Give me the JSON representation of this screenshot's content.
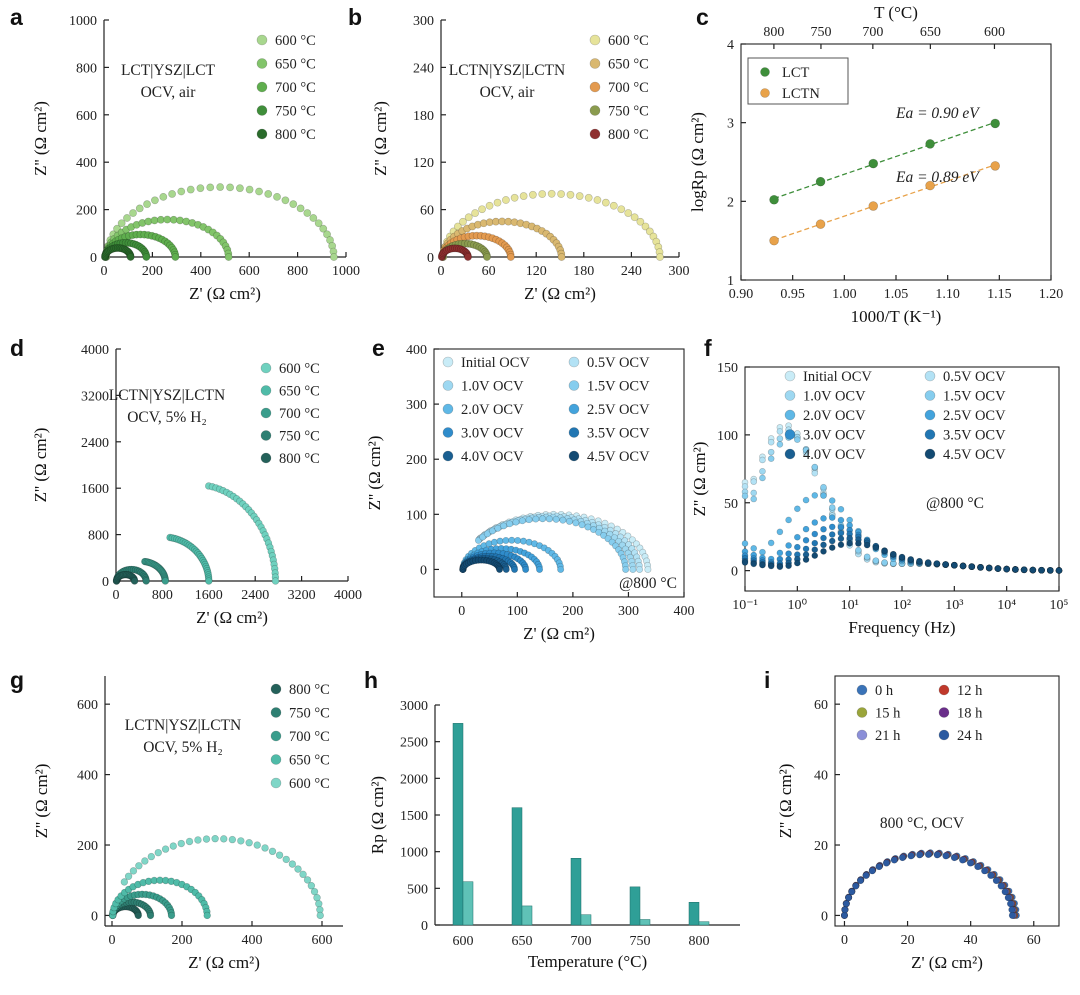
{
  "chart_data": [
    {
      "id": "a",
      "type": "scatter",
      "panel_label": "a",
      "annotation": [
        "LCT|YSZ|LCT",
        "OCV, air"
      ],
      "xlabel": "Z' (Ω cm²)",
      "ylabel": "Z'' (Ω cm²)",
      "xlim": [
        0,
        1000
      ],
      "ylim": [
        0,
        1000
      ],
      "xticks": [
        0,
        200,
        400,
        600,
        800,
        1000
      ],
      "yticks": [
        0,
        200,
        400,
        600,
        800,
        1000
      ],
      "legend_position": "top-right",
      "series": [
        {
          "name": "600 °C",
          "color": "#a8d78e",
          "left": 10,
          "right": 950,
          "peak": 295,
          "points": 36
        },
        {
          "name": "650 °C",
          "color": "#82c46a",
          "left": 8,
          "right": 515,
          "peak": 158,
          "points": 30
        },
        {
          "name": "700 °C",
          "color": "#5fae4e",
          "left": 6,
          "right": 295,
          "peak": 95,
          "points": 28
        },
        {
          "name": "750 °C",
          "color": "#3f8e3a",
          "left": 5,
          "right": 175,
          "peak": 60,
          "points": 24
        },
        {
          "name": "800 °C",
          "color": "#2a6b2b",
          "left": 4,
          "right": 110,
          "peak": 38,
          "points": 22
        }
      ]
    },
    {
      "id": "b",
      "type": "scatter",
      "panel_label": "b",
      "annotation": [
        "LCTN|YSZ|LCTN",
        "OCV, air"
      ],
      "xlabel": "Z' (Ω cm²)",
      "ylabel": "Z'' (Ω cm²)",
      "xlim": [
        0,
        300
      ],
      "ylim": [
        0,
        300
      ],
      "xticks": [
        0,
        60,
        120,
        180,
        240,
        300
      ],
      "yticks": [
        0,
        60,
        120,
        180,
        240,
        300
      ],
      "legend_position": "top-right",
      "series": [
        {
          "name": "600 °C",
          "color": "#e6e39a",
          "left": 3,
          "right": 276,
          "peak": 80,
          "points": 36
        },
        {
          "name": "650 °C",
          "color": "#d9b870",
          "left": 2,
          "right": 152,
          "peak": 45,
          "points": 30
        },
        {
          "name": "700 °C",
          "color": "#e39a4f",
          "left": 2,
          "right": 88,
          "peak": 27,
          "points": 26
        },
        {
          "name": "750 °C",
          "color": "#8a9b4e",
          "left": 2,
          "right": 58,
          "peak": 17,
          "points": 22
        },
        {
          "name": "800 °C",
          "color": "#8e2f2f",
          "left": 1,
          "right": 34,
          "peak": 11,
          "points": 20
        }
      ]
    },
    {
      "id": "c",
      "type": "scatter",
      "panel_label": "c",
      "xlabel": "1000/T (K⁻¹)",
      "ylabel": "logRp (Ω cm²)",
      "top_xlabel": "T (°C)",
      "xlim": [
        0.9,
        1.2
      ],
      "ylim": [
        1,
        4
      ],
      "xticks": [
        0.9,
        0.95,
        1.0,
        1.05,
        1.1,
        1.15,
        1.2
      ],
      "xtick_labels": [
        "0.90",
        "0.95",
        "1.00",
        "1.05",
        "1.10",
        "1.15",
        "1.20"
      ],
      "yticks": [
        1,
        2,
        3,
        4
      ],
      "top_ticks": [
        800,
        750,
        700,
        650,
        600
      ],
      "legend_position": "top-left",
      "series": [
        {
          "name": "LCT",
          "color": "#3e8e3a",
          "x": [
            0.932,
            0.977,
            1.028,
            1.083,
            1.146
          ],
          "y": [
            2.02,
            2.25,
            2.48,
            2.73,
            2.99
          ],
          "ea": "Ea = 0.90 eV"
        },
        {
          "name": "LCTN",
          "color": "#e8a24a",
          "x": [
            0.932,
            0.977,
            1.028,
            1.083,
            1.146
          ],
          "y": [
            1.5,
            1.71,
            1.94,
            2.2,
            2.45
          ],
          "ea": "Ea = 0.89 eV"
        }
      ]
    },
    {
      "id": "d",
      "type": "scatter",
      "panel_label": "d",
      "annotation": [
        "LCTN|YSZ|LCTN",
        "OCV, 5% H₂"
      ],
      "xlabel": "Z' (Ω cm²)",
      "ylabel": "Z'' (Ω cm²)",
      "xlim": [
        0,
        4000
      ],
      "ylim": [
        0,
        4000
      ],
      "xticks": [
        0,
        800,
        1600,
        2400,
        3200,
        4000
      ],
      "yticks": [
        0,
        800,
        1600,
        2400,
        3200,
        4000
      ],
      "legend_position": "top-right",
      "series": [
        {
          "name": "600 °C",
          "color": "#6fd1bf",
          "left": 20,
          "right": 2750,
          "peak": 1660,
          "points": 30,
          "partial": 0.55
        },
        {
          "name": "650 °C",
          "color": "#4fbba8",
          "left": 15,
          "right": 1600,
          "peak": 760,
          "points": 28,
          "partial": 0.55
        },
        {
          "name": "700 °C",
          "color": "#3a9d8c",
          "left": 12,
          "right": 850,
          "peak": 340,
          "points": 26,
          "partial": 0.55
        },
        {
          "name": "750 °C",
          "color": "#2e7f72",
          "left": 10,
          "right": 520,
          "peak": 200,
          "points": 22
        },
        {
          "name": "800 °C",
          "color": "#24615a",
          "left": 8,
          "right": 320,
          "peak": 110,
          "points": 20
        }
      ]
    },
    {
      "id": "e",
      "type": "scatter",
      "panel_label": "e",
      "annotation": [
        "@800 °C"
      ],
      "xlabel": "Z' (Ω cm²)",
      "ylabel": "Z'' (Ω cm²)",
      "xlim": [
        -50,
        400
      ],
      "ylim": [
        -50,
        400
      ],
      "xticks": [
        0,
        100,
        200,
        300,
        400
      ],
      "yticks": [
        0,
        100,
        200,
        300,
        400
      ],
      "legend_position": "top",
      "series": [
        {
          "name": "Initial OCV",
          "color": "#c9ecf7",
          "left": 2,
          "right": 335,
          "peak": 100,
          "points": 30,
          "partial": 0.2
        },
        {
          "name": "0.5V OCV",
          "color": "#b3e2f5",
          "left": 2,
          "right": 320,
          "peak": 97,
          "points": 30,
          "partial": 0.2
        },
        {
          "name": "1.0V OCV",
          "color": "#9ed8f1",
          "left": 2,
          "right": 308,
          "peak": 95,
          "points": 30,
          "partial": 0.2
        },
        {
          "name": "1.5V OCV",
          "color": "#86cdee",
          "left": 2,
          "right": 295,
          "peak": 92,
          "points": 30,
          "partial": 0.2
        },
        {
          "name": "2.0V OCV",
          "color": "#5fb8e6",
          "left": 2,
          "right": 178,
          "peak": 53,
          "points": 26
        },
        {
          "name": "2.5V OCV",
          "color": "#43a3dc",
          "left": 2,
          "right": 140,
          "peak": 38,
          "points": 24
        },
        {
          "name": "3.0V OCV",
          "color": "#2f8ccb",
          "left": 2,
          "right": 115,
          "peak": 30,
          "points": 22
        },
        {
          "name": "3.5V OCV",
          "color": "#2176b2",
          "left": 2,
          "right": 95,
          "peak": 24,
          "points": 22
        },
        {
          "name": "4.0V OCV",
          "color": "#1a5f91",
          "left": 2,
          "right": 80,
          "peak": 20,
          "points": 20
        },
        {
          "name": "4.5V OCV",
          "color": "#134a72",
          "left": 2,
          "right": 68,
          "peak": 17,
          "points": 20
        }
      ]
    },
    {
      "id": "f",
      "type": "scatter",
      "panel_label": "f",
      "annotation": [
        "@800 °C"
      ],
      "xlabel": "Frequency (Hz)",
      "ylabel": "Z'' (Ω cm²)",
      "xscale": "log",
      "xlim": [
        0.1,
        100000
      ],
      "ylim": [
        -15,
        150
      ],
      "xticks": [
        0.1,
        1,
        10,
        100,
        1000,
        10000,
        100000
      ],
      "xtick_labels": [
        "10⁻¹",
        "10⁰",
        "10¹",
        "10²",
        "10³",
        "10⁴",
        "10⁵"
      ],
      "yticks": [
        0,
        50,
        100,
        150
      ],
      "legend_position": "top",
      "series": [
        {
          "name": "Initial OCV",
          "color": "#c9ecf7",
          "peak_f": 0.6,
          "peak": 107,
          "low": 65
        },
        {
          "name": "0.5V OCV",
          "color": "#b3e2f5",
          "peak_f": 0.6,
          "peak": 104,
          "low": 62
        },
        {
          "name": "1.0V OCV",
          "color": "#9ed8f1",
          "peak_f": 0.7,
          "peak": 101,
          "low": 58
        },
        {
          "name": "1.5V OCV",
          "color": "#86cdee",
          "peak_f": 0.75,
          "peak": 98,
          "low": 55
        },
        {
          "name": "2.0V OCV",
          "color": "#5fb8e6",
          "peak_f": 2.5,
          "peak": 55,
          "low": 20
        },
        {
          "name": "2.5V OCV",
          "color": "#43a3dc",
          "peak_f": 4.0,
          "peak": 38,
          "low": 14
        },
        {
          "name": "3.0V OCV",
          "color": "#2f8ccb",
          "peak_f": 5.0,
          "peak": 31,
          "low": 11
        },
        {
          "name": "3.5V OCV",
          "color": "#2176b2",
          "peak_f": 6.5,
          "peak": 26,
          "low": 9
        },
        {
          "name": "4.0V OCV",
          "color": "#1a5f91",
          "peak_f": 8.0,
          "peak": 22,
          "low": 7
        },
        {
          "name": "4.5V OCV",
          "color": "#134a72",
          "peak_f": 10.0,
          "peak": 18,
          "low": 6
        }
      ]
    },
    {
      "id": "g",
      "type": "scatter",
      "panel_label": "g",
      "annotation": [
        "LCTN|YSZ|LCTN",
        "OCV, 5% H₂"
      ],
      "xlabel": "Z' (Ω cm²)",
      "ylabel": "Z'' (Ω cm²)",
      "xlim": [
        -20,
        660
      ],
      "ylim": [
        -30,
        680
      ],
      "xticks": [
        0,
        200,
        400,
        600
      ],
      "yticks": [
        0,
        200,
        400,
        600
      ],
      "legend_position": "top-right",
      "series": [
        {
          "name": "800 °C",
          "color": "#24615a",
          "left": 2,
          "right": 75,
          "peak": 25,
          "points": 20
        },
        {
          "name": "750 °C",
          "color": "#2e7f72",
          "left": 2,
          "right": 110,
          "peak": 38,
          "points": 22
        },
        {
          "name": "700 °C",
          "color": "#3a9d8c",
          "left": 2,
          "right": 170,
          "peak": 60,
          "points": 24
        },
        {
          "name": "650 °C",
          "color": "#4fbba8",
          "left": 2,
          "right": 272,
          "peak": 100,
          "points": 26
        },
        {
          "name": "600 °C",
          "color": "#7fd6c7",
          "left": 3,
          "right": 595,
          "peak": 218,
          "points": 32,
          "partial": 0.15
        }
      ]
    },
    {
      "id": "h",
      "type": "bar",
      "panel_label": "h",
      "xlabel": "Temperature (°C)",
      "ylabel": "Rp (Ω cm²)",
      "categories": [
        "600",
        "650",
        "700",
        "750",
        "800"
      ],
      "ylim": [
        0,
        3000
      ],
      "yticks": [
        0,
        500,
        1000,
        1500,
        2000,
        2500,
        3000
      ],
      "series": [
        {
          "color": "#2f9f97",
          "values": [
            2750,
            1600,
            910,
            520,
            310
          ]
        },
        {
          "color": "#5fc2b7",
          "values": [
            590,
            260,
            140,
            75,
            45
          ]
        }
      ]
    },
    {
      "id": "i",
      "type": "scatter",
      "panel_label": "i",
      "annotation": [
        "800 °C, OCV"
      ],
      "xlabel": "Z' (Ω cm²)",
      "ylabel": "Z'' (Ω cm²)",
      "xlim": [
        -3,
        68
      ],
      "ylim": [
        -3,
        68
      ],
      "xticks": [
        0,
        20,
        40,
        60
      ],
      "yticks": [
        0,
        20,
        40,
        60
      ],
      "legend_position": "top",
      "series": [
        {
          "name": "0 h",
          "color": "#3a73b8",
          "left": 0,
          "right": 54.5,
          "peak": 17.8,
          "points": 30
        },
        {
          "name": "12 h",
          "color": "#c0392b",
          "left": 0,
          "right": 54.0,
          "peak": 17.6,
          "points": 30
        },
        {
          "name": "15 h",
          "color": "#9aa53a",
          "left": 0,
          "right": 53.8,
          "peak": 17.5,
          "points": 30
        },
        {
          "name": "18 h",
          "color": "#6a2e8a",
          "left": 0,
          "right": 53.6,
          "peak": 17.5,
          "points": 30
        },
        {
          "name": "21 h",
          "color": "#8b8fd8",
          "left": 0,
          "right": 53.4,
          "peak": 17.4,
          "points": 30
        },
        {
          "name": "24 h",
          "color": "#2c5aa0",
          "left": 0,
          "right": 53.2,
          "peak": 17.3,
          "points": 30
        }
      ]
    }
  ]
}
